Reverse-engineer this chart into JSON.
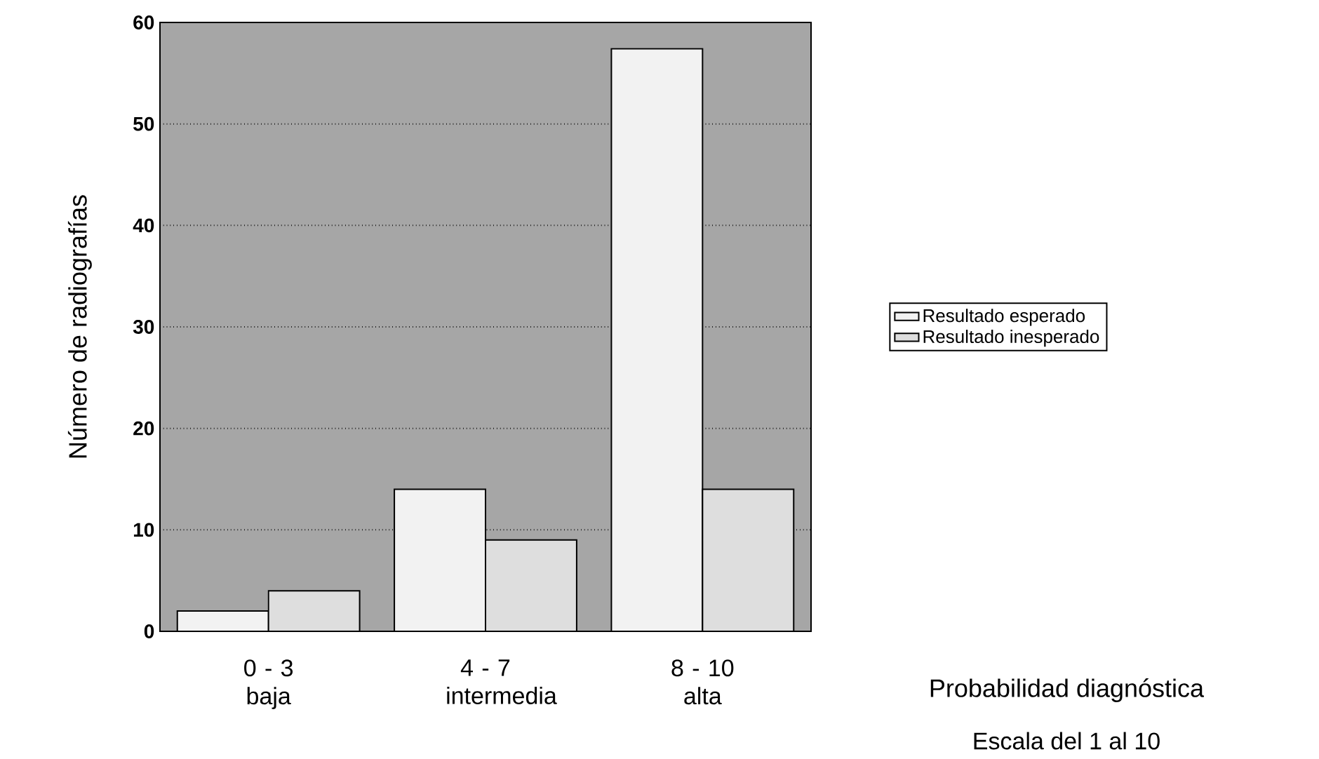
{
  "chart_data": {
    "type": "bar",
    "xlabel": "Probabilidad diagnóstica",
    "ylabel": "Número de radiografías",
    "categories": [
      "0 - 3 baja",
      "4 - 7 intermedia",
      "8 - 10 alta"
    ],
    "series": [
      {
        "name": "Resultado esperado",
        "color": "#f2f2f2",
        "values": [
          2,
          14,
          57.4
        ]
      },
      {
        "name": "Resultado inesperado",
        "color": "#dedede",
        "values": [
          4,
          9,
          14
        ]
      }
    ],
    "ylim": [
      0,
      60
    ],
    "yticks": [
      0,
      10,
      20,
      30,
      40,
      50,
      60
    ],
    "grid": "y",
    "legend": "right",
    "annotations": [
      "Escala del 1 al 10"
    ]
  }
}
